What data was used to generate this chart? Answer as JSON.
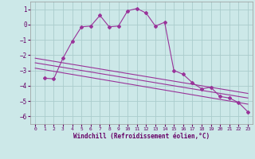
{
  "title": "",
  "xlabel": "Windchill (Refroidissement éolien,°C)",
  "background_color": "#cce8e8",
  "grid_color": "#aacccc",
  "line_color": "#993399",
  "xlim": [
    -0.5,
    23.5
  ],
  "ylim": [
    -6.5,
    1.5
  ],
  "yticks": [
    1,
    0,
    -1,
    -2,
    -3,
    -4,
    -5,
    -6
  ],
  "xticks": [
    0,
    1,
    2,
    3,
    4,
    5,
    6,
    7,
    8,
    9,
    10,
    11,
    12,
    13,
    14,
    15,
    16,
    17,
    18,
    19,
    20,
    21,
    22,
    23
  ],
  "main_x": [
    1,
    2,
    3,
    4,
    5,
    6,
    7,
    8,
    9,
    10,
    11,
    12,
    13,
    14,
    15,
    16,
    17,
    18,
    19,
    20,
    21,
    22,
    23
  ],
  "main_y": [
    -3.5,
    -3.55,
    -2.2,
    -1.1,
    -0.15,
    -0.1,
    0.6,
    -0.15,
    -0.1,
    0.9,
    1.05,
    0.75,
    -0.1,
    0.15,
    -3.0,
    -3.25,
    -3.8,
    -4.2,
    -4.1,
    -4.7,
    -4.8,
    -5.1,
    -5.7
  ],
  "line1_x": [
    0,
    23
  ],
  "line1_y": [
    -2.2,
    -4.5
  ],
  "line2_x": [
    0,
    23
  ],
  "line2_y": [
    -2.5,
    -4.8
  ],
  "line3_x": [
    0,
    23
  ],
  "line3_y": [
    -2.85,
    -5.2
  ]
}
